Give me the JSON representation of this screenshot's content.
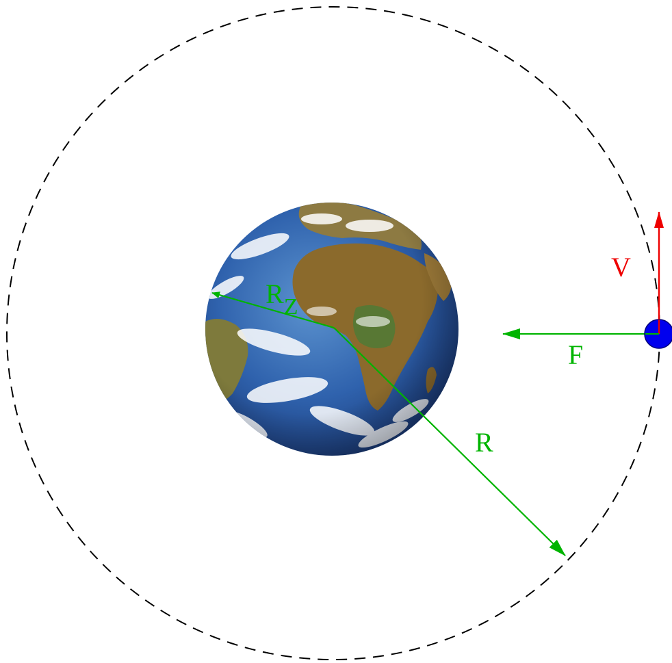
{
  "labels": {
    "earth_radius_main": "R",
    "earth_radius_sub": "Z",
    "orbit_radius": "R",
    "force": "F",
    "velocity": "V"
  },
  "colors": {
    "vector_green": "#00b400",
    "velocity_red": "#ee0000",
    "satellite_blue": "#0000ee",
    "orbit_dash": "#000000",
    "ocean": "#2a5ea8",
    "land": "#8a6a2e",
    "cloud": "#ffffff"
  },
  "icons": {
    "planet": "earth-globe-icon",
    "satellite": "satellite-dot-icon"
  }
}
